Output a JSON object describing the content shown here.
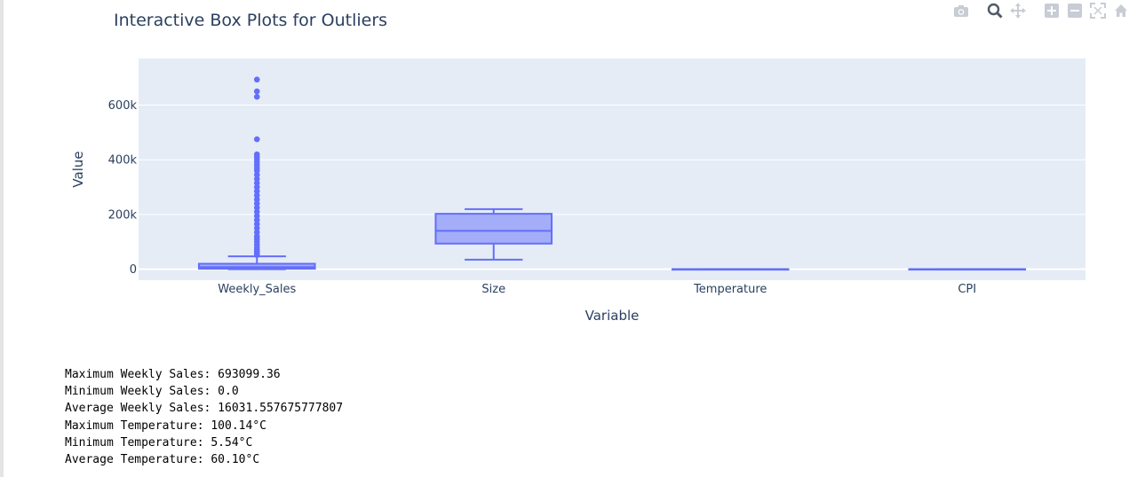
{
  "toolbar": {
    "icons": [
      "camera-icon",
      "zoom-icon",
      "pan-icon",
      "zoom-in-icon",
      "zoom-out-icon",
      "autoscale-icon",
      "reset-axes-icon"
    ]
  },
  "chart_data": {
    "type": "box",
    "title": "Interactive Box Plots for Outliers",
    "xlabel": "Variable",
    "ylabel": "Value",
    "ylim": [
      -40000,
      770000
    ],
    "yticks": [
      0,
      200000,
      400000,
      600000
    ],
    "ytick_labels": [
      "0",
      "200k",
      "400k",
      "600k"
    ],
    "categories": [
      "Weekly_Sales",
      "Size",
      "Temperature",
      "CPI"
    ],
    "color": "#636efa",
    "plot_bg": "#e5ecf6",
    "grid": true,
    "boxes": [
      {
        "name": "Weekly_Sales",
        "min": 0,
        "q1": 2000,
        "median": 7600,
        "q3": 20000,
        "upper_fence": 47000,
        "outliers": [
          693099,
          650000,
          630000,
          475000,
          420000,
          410000,
          400000,
          390000,
          380000,
          370000,
          360000,
          345000,
          330000,
          315000,
          300000,
          285000,
          270000,
          255000,
          240000,
          225000,
          210000,
          195000,
          180000,
          165000,
          150000,
          135000,
          120000,
          110000,
          100000,
          90000,
          80000,
          72000,
          65000,
          58000,
          52000
        ]
      },
      {
        "name": "Size",
        "min": 34875,
        "q1": 93638,
        "median": 140167,
        "q3": 202505,
        "upper_fence": 219622,
        "outliers": []
      },
      {
        "name": "Temperature",
        "min": 5.54,
        "q1": 46.7,
        "median": 62.1,
        "q3": 74.3,
        "upper_fence": 100.14,
        "outliers": []
      },
      {
        "name": "CPI",
        "min": 126.1,
        "q1": 132.0,
        "median": 182.4,
        "q3": 212.4,
        "upper_fence": 227.2,
        "outliers": []
      }
    ]
  },
  "output": {
    "lines": [
      "Maximum Weekly Sales: 693099.36",
      "Minimum Weekly Sales: 0.0",
      "Average Weekly Sales: 16031.557675777807",
      "Maximum Temperature: 100.14°C",
      "Minimum Temperature: 5.54°C",
      "Average Temperature: 60.10°C"
    ]
  }
}
